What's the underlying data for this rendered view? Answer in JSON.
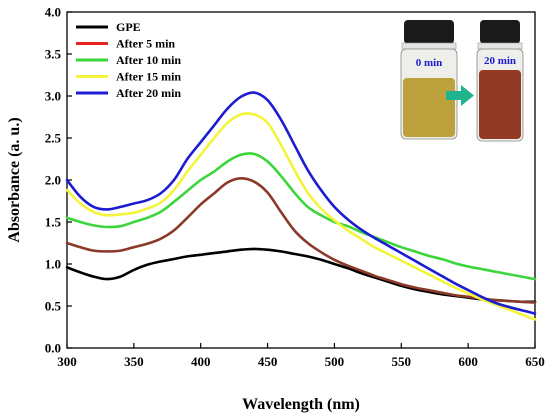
{
  "chart_data": {
    "type": "line",
    "title": "",
    "xlabel": "Wavelength (nm)",
    "ylabel": "Absorbance (a. u.)",
    "xlim": [
      300,
      650
    ],
    "ylim": [
      0,
      4.0
    ],
    "x_ticks": [
      "300",
      "350",
      "400",
      "450",
      "500",
      "550",
      "600",
      "650"
    ],
    "y_ticks": [
      "0.0",
      "0.5",
      "1.0",
      "1.5",
      "2.0",
      "2.5",
      "3.0",
      "3.5",
      "4.0"
    ],
    "grid": false,
    "legend": "top-left",
    "series": [
      {
        "name": "GPE",
        "color": "#000000",
        "points": [
          [
            300,
            0.96
          ],
          [
            310,
            0.9
          ],
          [
            320,
            0.85
          ],
          [
            330,
            0.82
          ],
          [
            340,
            0.85
          ],
          [
            350,
            0.93
          ],
          [
            360,
            0.99
          ],
          [
            370,
            1.03
          ],
          [
            380,
            1.06
          ],
          [
            390,
            1.09
          ],
          [
            400,
            1.11
          ],
          [
            410,
            1.13
          ],
          [
            420,
            1.15
          ],
          [
            430,
            1.17
          ],
          [
            440,
            1.18
          ],
          [
            450,
            1.17
          ],
          [
            460,
            1.15
          ],
          [
            470,
            1.12
          ],
          [
            480,
            1.09
          ],
          [
            490,
            1.05
          ],
          [
            500,
            1.0
          ],
          [
            510,
            0.95
          ],
          [
            520,
            0.89
          ],
          [
            530,
            0.84
          ],
          [
            540,
            0.79
          ],
          [
            550,
            0.74
          ],
          [
            560,
            0.7
          ],
          [
            570,
            0.67
          ],
          [
            580,
            0.64
          ],
          [
            590,
            0.62
          ],
          [
            600,
            0.6
          ],
          [
            610,
            0.58
          ],
          [
            620,
            0.57
          ],
          [
            630,
            0.56
          ],
          [
            640,
            0.55
          ],
          [
            650,
            0.55
          ]
        ]
      },
      {
        "name": "After 5 min",
        "color": "#e8231f",
        "line_color": "#8b3a2a",
        "points": [
          [
            300,
            1.25
          ],
          [
            310,
            1.2
          ],
          [
            320,
            1.16
          ],
          [
            330,
            1.15
          ],
          [
            340,
            1.16
          ],
          [
            350,
            1.2
          ],
          [
            360,
            1.24
          ],
          [
            370,
            1.3
          ],
          [
            380,
            1.4
          ],
          [
            390,
            1.55
          ],
          [
            400,
            1.71
          ],
          [
            410,
            1.84
          ],
          [
            420,
            1.97
          ],
          [
            430,
            2.02
          ],
          [
            440,
            1.98
          ],
          [
            450,
            1.85
          ],
          [
            460,
            1.62
          ],
          [
            470,
            1.4
          ],
          [
            480,
            1.25
          ],
          [
            490,
            1.14
          ],
          [
            500,
            1.05
          ],
          [
            510,
            0.98
          ],
          [
            520,
            0.92
          ],
          [
            530,
            0.86
          ],
          [
            540,
            0.81
          ],
          [
            550,
            0.76
          ],
          [
            560,
            0.72
          ],
          [
            570,
            0.69
          ],
          [
            580,
            0.66
          ],
          [
            590,
            0.63
          ],
          [
            600,
            0.61
          ],
          [
            610,
            0.59
          ],
          [
            620,
            0.57
          ],
          [
            630,
            0.56
          ],
          [
            640,
            0.55
          ],
          [
            650,
            0.54
          ]
        ]
      },
      {
        "name": "After 10 min",
        "color": "#3cd53a",
        "points": [
          [
            300,
            1.55
          ],
          [
            310,
            1.5
          ],
          [
            320,
            1.46
          ],
          [
            330,
            1.44
          ],
          [
            340,
            1.45
          ],
          [
            350,
            1.5
          ],
          [
            360,
            1.55
          ],
          [
            370,
            1.62
          ],
          [
            380,
            1.74
          ],
          [
            390,
            1.87
          ],
          [
            400,
            2.0
          ],
          [
            410,
            2.1
          ],
          [
            420,
            2.22
          ],
          [
            430,
            2.3
          ],
          [
            440,
            2.31
          ],
          [
            450,
            2.22
          ],
          [
            460,
            2.05
          ],
          [
            470,
            1.85
          ],
          [
            480,
            1.68
          ],
          [
            490,
            1.58
          ],
          [
            500,
            1.5
          ],
          [
            510,
            1.45
          ],
          [
            520,
            1.38
          ],
          [
            530,
            1.32
          ],
          [
            540,
            1.26
          ],
          [
            550,
            1.2
          ],
          [
            560,
            1.15
          ],
          [
            570,
            1.1
          ],
          [
            580,
            1.06
          ],
          [
            590,
            1.01
          ],
          [
            600,
            0.97
          ],
          [
            610,
            0.94
          ],
          [
            620,
            0.91
          ],
          [
            630,
            0.88
          ],
          [
            640,
            0.85
          ],
          [
            650,
            0.82
          ]
        ]
      },
      {
        "name": "After 15 min",
        "color": "#f4f43a",
        "points": [
          [
            300,
            1.88
          ],
          [
            310,
            1.72
          ],
          [
            320,
            1.62
          ],
          [
            330,
            1.58
          ],
          [
            340,
            1.59
          ],
          [
            350,
            1.61
          ],
          [
            360,
            1.66
          ],
          [
            370,
            1.73
          ],
          [
            380,
            1.88
          ],
          [
            390,
            2.1
          ],
          [
            400,
            2.3
          ],
          [
            410,
            2.5
          ],
          [
            420,
            2.68
          ],
          [
            430,
            2.78
          ],
          [
            440,
            2.78
          ],
          [
            450,
            2.68
          ],
          [
            460,
            2.42
          ],
          [
            470,
            2.12
          ],
          [
            480,
            1.85
          ],
          [
            490,
            1.66
          ],
          [
            500,
            1.52
          ],
          [
            510,
            1.4
          ],
          [
            520,
            1.3
          ],
          [
            530,
            1.2
          ],
          [
            540,
            1.12
          ],
          [
            550,
            1.04
          ],
          [
            560,
            0.96
          ],
          [
            570,
            0.88
          ],
          [
            580,
            0.8
          ],
          [
            590,
            0.72
          ],
          [
            600,
            0.65
          ],
          [
            610,
            0.58
          ],
          [
            620,
            0.52
          ],
          [
            630,
            0.46
          ],
          [
            640,
            0.4
          ],
          [
            650,
            0.34
          ]
        ]
      },
      {
        "name": "After 20 min",
        "color": "#1c1cd0",
        "points": [
          [
            300,
            2.0
          ],
          [
            310,
            1.8
          ],
          [
            320,
            1.68
          ],
          [
            330,
            1.65
          ],
          [
            340,
            1.68
          ],
          [
            350,
            1.72
          ],
          [
            360,
            1.76
          ],
          [
            370,
            1.84
          ],
          [
            380,
            2.0
          ],
          [
            390,
            2.25
          ],
          [
            400,
            2.45
          ],
          [
            410,
            2.65
          ],
          [
            420,
            2.85
          ],
          [
            430,
            2.99
          ],
          [
            440,
            3.04
          ],
          [
            450,
            2.95
          ],
          [
            460,
            2.72
          ],
          [
            470,
            2.42
          ],
          [
            480,
            2.12
          ],
          [
            490,
            1.88
          ],
          [
            500,
            1.68
          ],
          [
            510,
            1.53
          ],
          [
            520,
            1.41
          ],
          [
            530,
            1.31
          ],
          [
            540,
            1.22
          ],
          [
            550,
            1.13
          ],
          [
            560,
            1.04
          ],
          [
            570,
            0.95
          ],
          [
            580,
            0.86
          ],
          [
            590,
            0.77
          ],
          [
            600,
            0.69
          ],
          [
            610,
            0.61
          ],
          [
            620,
            0.54
          ],
          [
            630,
            0.49
          ],
          [
            640,
            0.45
          ],
          [
            650,
            0.41
          ]
        ]
      }
    ]
  },
  "inset": {
    "vial_left_label": "0 min",
    "vial_right_label": "20 min",
    "vial_left_color": "#b89a2e",
    "vial_right_color": "#8a2a12",
    "arrow_color": "#1fb38e",
    "cap_color": "#1a1a1a"
  }
}
